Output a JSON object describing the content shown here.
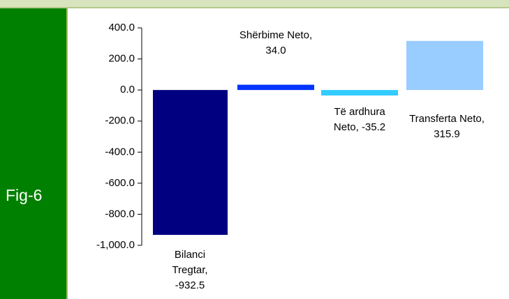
{
  "figure_label": "Fig-6",
  "chart_data": {
    "type": "waterfall",
    "values": [
      -932.5,
      34.0,
      -35.2,
      315.9
    ],
    "value_labels": [
      "Bilanci Tregtar, -932.5",
      "Shërbime Neto, 34.0",
      "Të ardhura Neto, -35.2",
      "Transferta Neto, 315.9"
    ],
    "colors": [
      "#000080",
      "#0033ff",
      "#33ccff",
      "#99ccff"
    ],
    "ylim": [
      -1000,
      400
    ],
    "yticks": [
      {
        "value": 400,
        "label": "400.0"
      },
      {
        "value": 200,
        "label": "200.0"
      },
      {
        "value": 0,
        "label": "0.0"
      },
      {
        "value": -200,
        "label": "-200.0"
      },
      {
        "value": -400,
        "label": "-400.0"
      },
      {
        "value": -600,
        "label": "-600.0"
      },
      {
        "value": -800,
        "label": "-800.0"
      },
      {
        "value": -1000,
        "label": "-1,000.0"
      }
    ]
  }
}
